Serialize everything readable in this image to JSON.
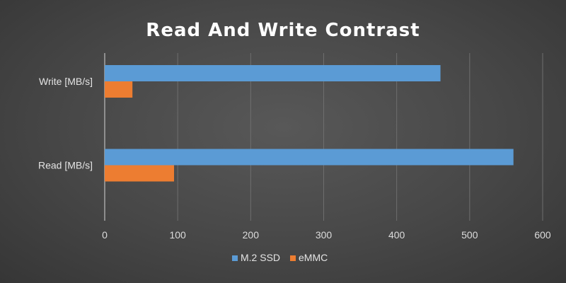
{
  "chart_data": {
    "type": "bar",
    "orientation": "horizontal",
    "title": "Read And Write Contrast",
    "categories": [
      "Write [MB/s]",
      "Read [MB/s]"
    ],
    "series": [
      {
        "name": "M.2 SSD",
        "values": [
          460,
          560
        ],
        "color": "#5b9bd5"
      },
      {
        "name": "eMMC",
        "values": [
          38,
          95
        ],
        "color": "#ed7d31"
      }
    ],
    "xlim": [
      0,
      600
    ],
    "x_ticks": [
      0,
      100,
      200,
      300,
      400,
      500,
      600
    ],
    "grid": true,
    "legend_position": "bottom"
  }
}
